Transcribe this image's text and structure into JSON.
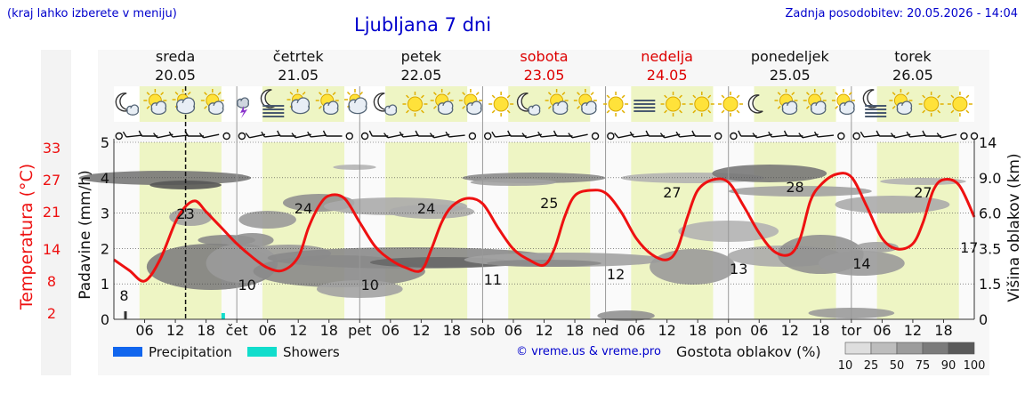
{
  "header": {
    "left_note": "(kraj lahko izberete v meniju)",
    "title": "Ljubljana 7 dni",
    "updated": "Zadnja posodobitev: 20.05.2026 - 14:04"
  },
  "credit": "© vreme.us & vreme.pro",
  "colors": {
    "temperature_line": "#ee1111",
    "precipitation": "#1166ee",
    "showers": "#11ddcc",
    "daylight": "#eef5c4",
    "weekend_text": "#dd0000",
    "link_blue": "#0000cc"
  },
  "days": [
    {
      "name": "sreda",
      "date": "20.05",
      "weekend": false
    },
    {
      "name": "četrtek",
      "date": "21.05",
      "weekend": false
    },
    {
      "name": "petek",
      "date": "22.05",
      "weekend": false
    },
    {
      "name": "sobota",
      "date": "23.05",
      "weekend": true
    },
    {
      "name": "nedelja",
      "date": "24.05",
      "weekend": true
    },
    {
      "name": "ponedeljek",
      "date": "25.05",
      "weekend": false
    },
    {
      "name": "torek",
      "date": "26.05",
      "weekend": false
    }
  ],
  "icons": [
    "moon-cloud",
    "sun-cloud",
    "cloud",
    "sun-cloud",
    "thunder",
    "moon-fog",
    "cloud",
    "sun-cloud",
    "cloud",
    "moon-cloud",
    "sun",
    "sun-cloud",
    "sun-cloud",
    "sun",
    "moon-cloud",
    "sun-cloud",
    "sun-cloud",
    "sun",
    "fog",
    "sun",
    "sun",
    "sun",
    "moon",
    "sun-cloud",
    "sun-cloud",
    "sun-cloud",
    "moon-fog",
    "sun-cloud",
    "sun",
    "sun"
  ],
  "chart_data": {
    "type": "line",
    "title": "Ljubljana 7 dni",
    "x_tick_labels": [
      "06",
      "12",
      "18",
      "čet",
      "06",
      "12",
      "18",
      "pet",
      "06",
      "12",
      "18",
      "sob",
      "06",
      "12",
      "18",
      "ned",
      "06",
      "12",
      "18",
      "pon",
      "06",
      "12",
      "18",
      "tor",
      "06",
      "12",
      "18"
    ],
    "y_left_precip": {
      "label": "Padavine (mm/h)",
      "ticks": [
        0,
        1,
        2,
        3,
        4,
        5
      ],
      "range": [
        0,
        5
      ]
    },
    "y_left_temp": {
      "label": "Temperatura (°C)",
      "ticks": [
        2,
        8,
        14,
        21,
        27,
        33
      ]
    },
    "y_right_cloud": {
      "label": "Višina oblakov (km)",
      "ticks": [
        "0",
        "1.5",
        "3.5",
        "6.0",
        "9.0",
        "14"
      ]
    },
    "temperature_series": {
      "name": "Temperatura",
      "x_hours": [
        0,
        3,
        6,
        9,
        12,
        14,
        16,
        18,
        21,
        24,
        27,
        30,
        33,
        36,
        38,
        40,
        42,
        45,
        48,
        51,
        54,
        57,
        60,
        62,
        64,
        66,
        69,
        72,
        75,
        78,
        81,
        84,
        86,
        88,
        90,
        93,
        96,
        99,
        102,
        105,
        108,
        110,
        112,
        114,
        117,
        120,
        123,
        126,
        129,
        132,
        134,
        136,
        138,
        141,
        144,
        147,
        150,
        153,
        156,
        158,
        160,
        162,
        165,
        168
      ],
      "values_c": [
        12,
        10,
        8,
        12,
        19,
        22,
        23,
        21,
        18,
        15,
        12.5,
        10.5,
        10,
        12.5,
        18,
        22,
        24,
        23.5,
        19,
        14.5,
        12,
        10.5,
        10,
        14,
        19,
        22,
        23.5,
        22.5,
        18,
        14,
        12,
        11,
        14,
        20,
        24,
        25,
        24.5,
        21,
        16,
        13,
        12,
        14,
        20,
        25,
        27,
        26.5,
        22,
        17,
        13.5,
        13,
        16,
        23,
        26,
        28,
        27.5,
        22,
        16,
        14,
        15,
        19,
        25,
        27,
        26,
        20
      ]
    },
    "temperature_labels": [
      {
        "hour": 2,
        "value": 8
      },
      {
        "hour": 14,
        "value": 23
      },
      {
        "hour": 26,
        "value": 10
      },
      {
        "hour": 37,
        "value": 24
      },
      {
        "hour": 50,
        "value": 10
      },
      {
        "hour": 61,
        "value": 24
      },
      {
        "hour": 74,
        "value": 11
      },
      {
        "hour": 85,
        "value": 25
      },
      {
        "hour": 98,
        "value": 12
      },
      {
        "hour": 109,
        "value": 27
      },
      {
        "hour": 122,
        "value": 13
      },
      {
        "hour": 133,
        "value": 28
      },
      {
        "hour": 146,
        "value": 14
      },
      {
        "hour": 158,
        "value": 27
      },
      {
        "hour": 167,
        "value": 17
      }
    ],
    "current_time_hour": 14,
    "legend": [
      {
        "name": "Precipitation",
        "color": "#1166ee"
      },
      {
        "name": "Showers",
        "color": "#11ddcc"
      }
    ],
    "cloud_density_legend": {
      "title": "Gostota oblakov (%)",
      "levels": [
        "10",
        "25",
        "50",
        "75",
        "90",
        "100"
      ]
    }
  }
}
